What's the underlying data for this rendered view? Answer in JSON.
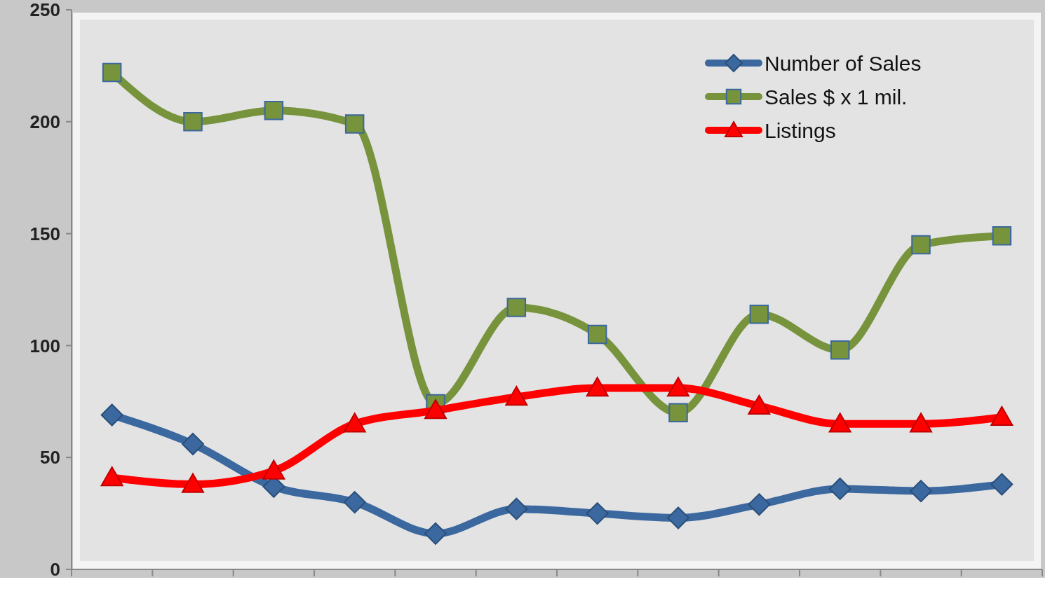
{
  "chart_data": {
    "type": "line",
    "categories": [
      null,
      null,
      null,
      null,
      null,
      null,
      null,
      null,
      null,
      null,
      null,
      null
    ],
    "series": [
      {
        "name": "Number of Sales",
        "color": "#3b689f",
        "marker": "diamond",
        "values": [
          69,
          56,
          37,
          30,
          16,
          27,
          25,
          23,
          29,
          36,
          35,
          38
        ]
      },
      {
        "name": "Sales $ x 1 mil.",
        "color": "#77933c",
        "marker": "square",
        "values": [
          222,
          200,
          205,
          199,
          74,
          117,
          105,
          70,
          114,
          98,
          145,
          149
        ]
      },
      {
        "name": "Listings",
        "color": "#ff0000",
        "marker": "triangle",
        "values": [
          41,
          38,
          44,
          65,
          71,
          77,
          81,
          81,
          73,
          65,
          65,
          68
        ]
      }
    ],
    "ylim": [
      0,
      250
    ],
    "yticks": [
      0,
      50,
      100,
      150,
      200,
      250
    ],
    "grid": false,
    "legend": "top right",
    "tick_labels": "y"
  }
}
